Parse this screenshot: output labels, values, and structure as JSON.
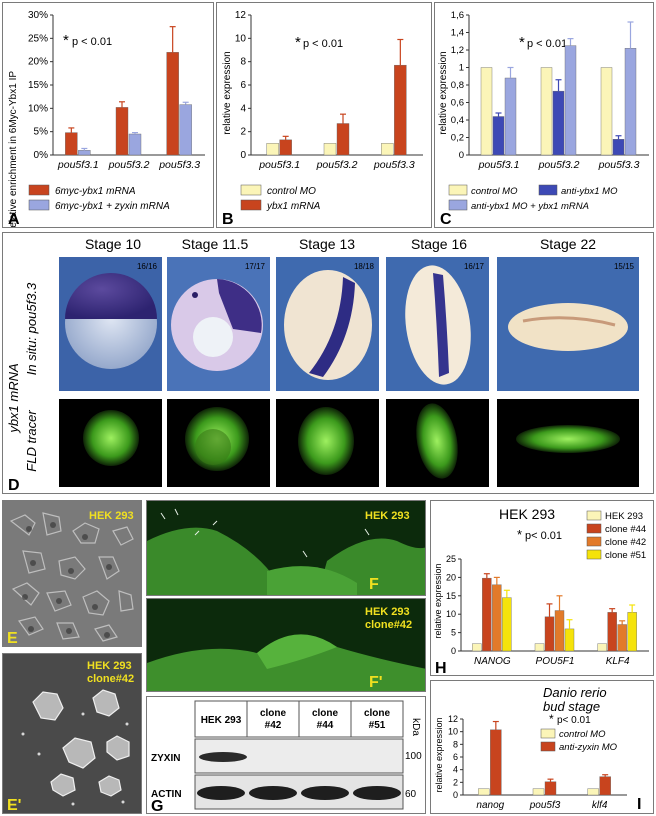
{
  "panels": {
    "A": {
      "letter": "A",
      "ylabel": "relative enrichment in 6Myc-Ybx1 IP",
      "pnote": "p < 0.01",
      "legend": [
        "6myc-ybx1 mRNA",
        "6myc-ybx1 + zyxin mRNA"
      ]
    },
    "B": {
      "letter": "B",
      "ylabel": "relative expression",
      "pnote": "p < 0.01",
      "legend": [
        "control MO",
        "ybx1 mRNA"
      ]
    },
    "C": {
      "letter": "C",
      "ylabel": "relative expression",
      "pnote": "p < 0.01",
      "legend": [
        "control MO",
        "anti-ybx1 MO",
        "anti-ybx1 MO + ybx1 mRNA"
      ]
    },
    "D": {
      "letter": "D",
      "stages": [
        {
          "label": "Stage 10",
          "count": "16/16"
        },
        {
          "label": "Stage  11.5",
          "count": "17/17"
        },
        {
          "label": "Stage 13",
          "count": "18/18"
        },
        {
          "label": "Stage 16",
          "count": "16/17"
        },
        {
          "label": "Stage 22",
          "count": "15/15"
        }
      ],
      "side_label_main": "ybx1 mRNA",
      "row1_label": "In situ: pou5f3.3",
      "row2_label": "FLD tracer"
    },
    "E": {
      "letter": "E",
      "label": "HEK 293"
    },
    "E2": {
      "letter": "E'",
      "label1": "HEK 293",
      "label2": "clone#42"
    },
    "F": {
      "letter": "F",
      "label": "HEK 293"
    },
    "F2": {
      "letter": "F'",
      "label1": "HEK 293",
      "label2": "clone#42"
    },
    "G": {
      "letter": "G",
      "columns": [
        "HEK 293",
        "clone\n#42",
        "clone\n#44",
        "clone\n#51"
      ],
      "rows": [
        "ZYXIN",
        "ACTIN"
      ],
      "kda_label": "kDa",
      "markers": [
        "100",
        "60"
      ]
    },
    "H": {
      "letter": "H",
      "title": "HEK 293",
      "ylabel": "relative expression",
      "pnote": "p< 0.01",
      "legend": [
        "HEK 293",
        "clone #44",
        "clone #42",
        "clone #51"
      ]
    },
    "I": {
      "letter": "I",
      "title1": "Danio rerio",
      "title2": "bud stage",
      "ylabel": "relative expression",
      "pnote": "p< 0.01",
      "legend": [
        "control MO",
        "anti-zyxin MO"
      ]
    }
  },
  "chart_data": [
    {
      "id": "A",
      "type": "bar",
      "categories": [
        "pou5f3.1",
        "pou5f3.2",
        "pou5f3.3"
      ],
      "ylim": [
        0,
        30
      ],
      "yticks": [
        "0%",
        "5%",
        "10%",
        "15%",
        "20%",
        "25%",
        "30%"
      ],
      "colors": [
        "#c8441e",
        "#9aa6df"
      ],
      "series": [
        {
          "name": "6myc-ybx1 mRNA",
          "values": [
            4.8,
            10.2,
            22.0
          ],
          "err": [
            1.0,
            1.2,
            5.5
          ]
        },
        {
          "name": "6myc-ybx1 + zyxin mRNA",
          "values": [
            1.0,
            4.5,
            10.8
          ],
          "err": [
            0.4,
            0.3,
            0.5
          ]
        }
      ]
    },
    {
      "id": "B",
      "type": "bar",
      "categories": [
        "pou5f3.1",
        "pou5f3.2",
        "pou5f3.3"
      ],
      "ylim": [
        0,
        12
      ],
      "yticks": [
        "0",
        "2",
        "4",
        "6",
        "8",
        "10",
        "12"
      ],
      "colors": [
        "#fbf5b8",
        "#c8441e"
      ],
      "series": [
        {
          "name": "control MO",
          "values": [
            1.0,
            1.0,
            1.0
          ],
          "err": [
            0,
            0,
            0
          ]
        },
        {
          "name": "ybx1 mRNA",
          "values": [
            1.3,
            2.7,
            7.7
          ],
          "err": [
            0.3,
            0.8,
            2.2
          ]
        }
      ]
    },
    {
      "id": "C",
      "type": "bar",
      "categories": [
        "pou5f3.1",
        "pou5f3.2",
        "pou5f3.3"
      ],
      "ylim": [
        0,
        1.6
      ],
      "yticks": [
        "0",
        "0,2",
        "0,4",
        "0,6",
        "0,8",
        "1",
        "1,2",
        "1,4",
        "1,6"
      ],
      "colors": [
        "#fbf5b8",
        "#3d49b5",
        "#9aa6df"
      ],
      "series": [
        {
          "name": "control MO",
          "values": [
            1.0,
            1.0,
            1.0
          ],
          "err": [
            0,
            0,
            0
          ]
        },
        {
          "name": "anti-ybx1 MO",
          "values": [
            0.44,
            0.73,
            0.18
          ],
          "err": [
            0.04,
            0.13,
            0.04
          ]
        },
        {
          "name": "anti-ybx1 MO + ybx1 mRNA",
          "values": [
            0.88,
            1.25,
            1.22
          ],
          "err": [
            0.12,
            0.08,
            0.3
          ]
        }
      ]
    },
    {
      "id": "H",
      "type": "bar",
      "categories": [
        "NANOG",
        "POU5F1",
        "KLF4"
      ],
      "ylim": [
        0,
        25
      ],
      "yticks": [
        "0",
        "5",
        "10",
        "15",
        "20",
        "25"
      ],
      "colors": [
        "#fbf5b8",
        "#c8441e",
        "#e27a2a",
        "#f5e30a"
      ],
      "series": [
        {
          "name": "HEK 293",
          "values": [
            2.0,
            2.0,
            2.0
          ],
          "err": [
            0,
            0,
            0
          ]
        },
        {
          "name": "clone #44",
          "values": [
            19.8,
            9.3,
            10.5
          ],
          "err": [
            1.2,
            3.5,
            1.0
          ]
        },
        {
          "name": "clone #42",
          "values": [
            18.0,
            11.0,
            7.2
          ],
          "err": [
            2.0,
            4.0,
            1.0
          ]
        },
        {
          "name": "clone #51",
          "values": [
            14.5,
            6.0,
            10.5
          ],
          "err": [
            2.0,
            2.5,
            2.0
          ]
        }
      ]
    },
    {
      "id": "I",
      "type": "bar",
      "categories": [
        "nanog",
        "pou5f3",
        "klf4"
      ],
      "ylim": [
        0,
        12
      ],
      "yticks": [
        "0",
        "2",
        "4",
        "6",
        "8",
        "10",
        "12"
      ],
      "colors": [
        "#fbf5b8",
        "#c8441e"
      ],
      "series": [
        {
          "name": "control MO",
          "values": [
            1.0,
            1.0,
            1.0
          ],
          "err": [
            0,
            0,
            0
          ]
        },
        {
          "name": "anti-zyxin MO",
          "values": [
            10.3,
            2.1,
            2.9
          ],
          "err": [
            1.3,
            0.4,
            0.3
          ]
        }
      ]
    }
  ]
}
